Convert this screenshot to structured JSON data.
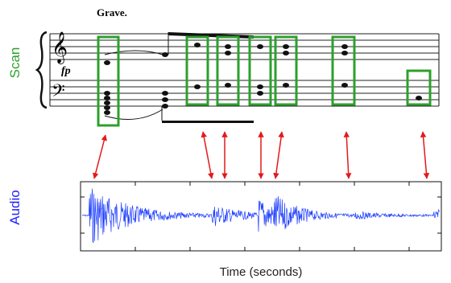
{
  "score": {
    "tempo": "Grave.",
    "dynamic": "fp"
  },
  "labels": {
    "scan": "Scan",
    "audio": "Audio"
  },
  "x_axis_label": "Time (seconds)"
}
